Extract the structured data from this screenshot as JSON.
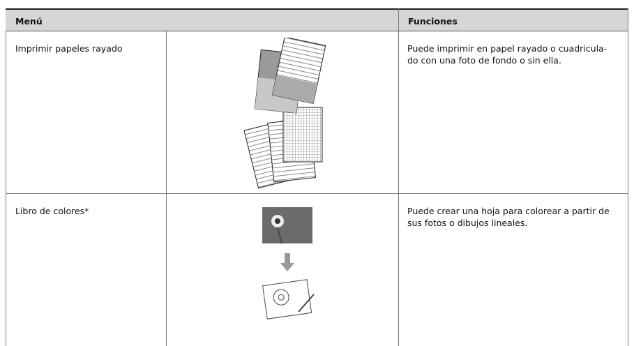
{
  "table": {
    "headers": [
      "Menú",
      "Funciones"
    ],
    "rows": [
      {
        "menu": "Imprimir papeles rayado",
        "functions": [
          "Puede imprimir en papel rayado o cuadricula-",
          "do con una foto de fondo o sin ella."
        ]
      },
      {
        "menu": "Libro de colores*",
        "functions": [
          "Puede crear una hoja para colorear a partir de",
          "sus fotos o dibujos lineales."
        ]
      }
    ]
  }
}
